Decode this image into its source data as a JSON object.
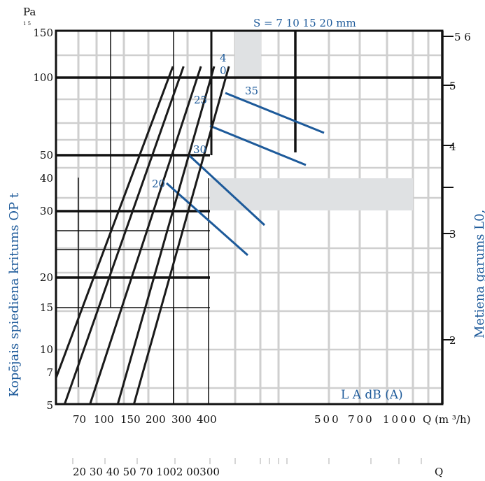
{
  "chart_data": {
    "type": "line",
    "unit_pa": "Pa",
    "unit_small": "1 5",
    "ylabel": "Kopējais spiediena kritums OP t",
    "y2label": "Metiena garums L0,",
    "xlabel": "Q (m ³/h)",
    "x2label": "Q",
    "s_label": "S = 7 10 15 20 mm",
    "la_label": "L A dB (A)",
    "y_scale": "log",
    "ylim": [
      5,
      150
    ],
    "xlim": [
      60,
      1500
    ],
    "y_ticks": [
      "5",
      "7",
      "10",
      "15",
      "20",
      "30",
      "40",
      "50",
      "100",
      "150"
    ],
    "y2_ticks": [
      "2",
      "3",
      "4",
      "5",
      "5 6"
    ],
    "x_ticks": [
      "70",
      "100",
      "150",
      "200",
      "300",
      "400",
      "500",
      "700",
      "1000"
    ],
    "x2_ticks": [
      "20 30 40 50 70 1002 00300"
    ],
    "noise_labels": [
      "20",
      "25",
      "30",
      "35",
      "4",
      "0"
    ],
    "colors": {
      "curves": "#1a1a1a",
      "noise": "#1d5a9a",
      "grid": "#cfcfcf",
      "shade": "#dfe1e3",
      "accent": "#1d5a9a"
    },
    "series": [
      {
        "x": [
          60,
          480
        ],
        "y": [
          6.5,
          150
        ]
      },
      {
        "x": [
          70,
          580
        ],
        "y": [
          5,
          150
        ]
      },
      {
        "x": [
          110,
          790
        ],
        "y": [
          5,
          150
        ]
      },
      {
        "x": [
          180,
          1000
        ],
        "y": [
          5,
          150
        ]
      },
      {
        "x": [
          240,
          1300
        ],
        "y": [
          5,
          150
        ]
      }
    ]
  }
}
